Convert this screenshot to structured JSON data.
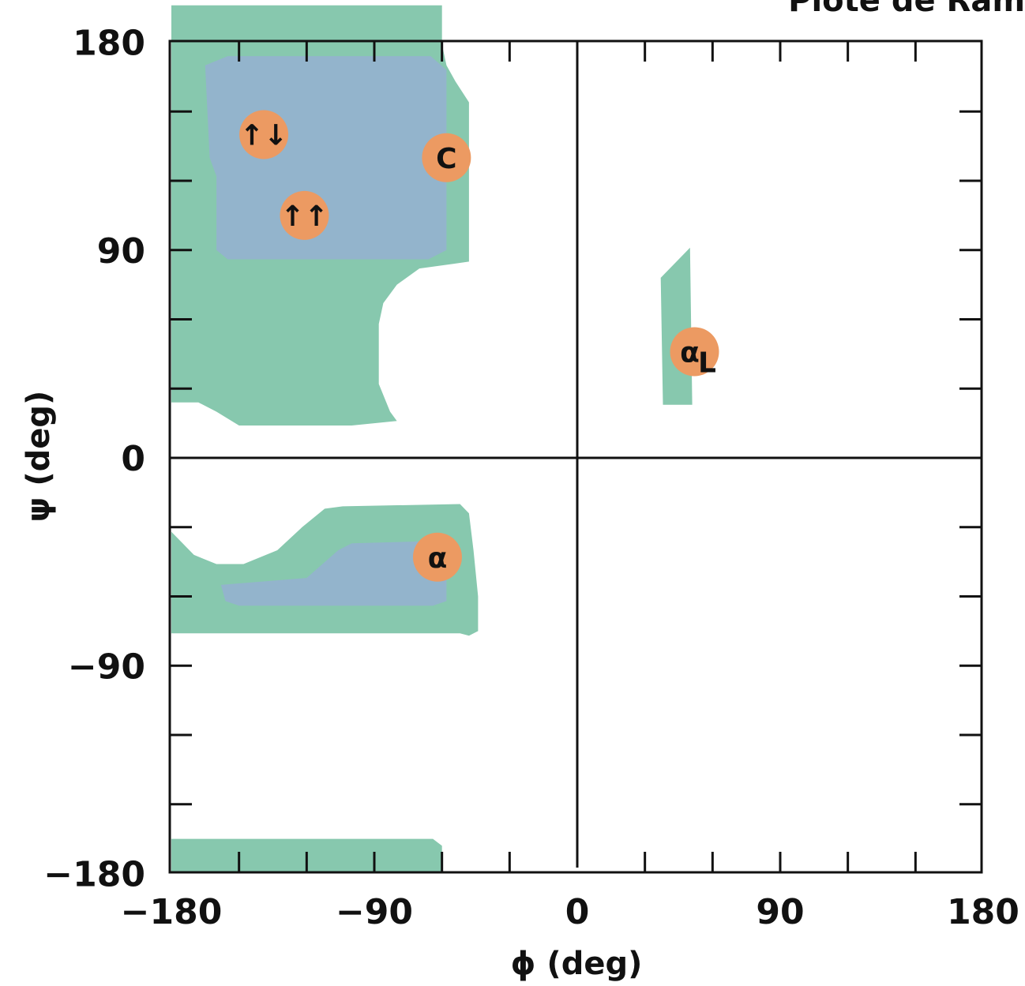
{
  "chart_data": {
    "type": "scatter",
    "title": "Plote de Ram",
    "xlabel": "ϕ (deg)",
    "ylabel": "ψ (deg)",
    "xlim": [
      -180,
      180
    ],
    "ylim": [
      -180,
      180
    ],
    "x_ticks": [
      -180,
      -90,
      0,
      90,
      180
    ],
    "x_tick_labels": [
      "−180",
      "−90",
      "0",
      "90",
      "180"
    ],
    "y_ticks": [
      180,
      90,
      0,
      -90,
      -180
    ],
    "y_tick_labels": [
      "180",
      "90",
      "0",
      "−90",
      "−180"
    ],
    "minor_tick_step": 30,
    "grid": false,
    "colors": {
      "allowed": "#87c8ae",
      "favored": "#93b4cc",
      "marker": "#ec9a62",
      "axis": "#111111"
    },
    "regions": [
      {
        "name": "beta-allowed",
        "level": "allowed",
        "points": [
          [
            -180,
            196
          ],
          [
            -60,
            196
          ],
          [
            -60,
            179
          ],
          [
            -58,
            170
          ],
          [
            -54,
            163
          ],
          [
            -48,
            154
          ],
          [
            -48,
            85
          ],
          [
            -55,
            84
          ],
          [
            -70,
            82
          ],
          [
            -80,
            75
          ],
          [
            -86,
            67
          ],
          [
            -88,
            58
          ],
          [
            -88,
            32
          ],
          [
            -83,
            20
          ],
          [
            -80,
            16
          ],
          [
            -100,
            14
          ],
          [
            -150,
            14
          ],
          [
            -160,
            20
          ],
          [
            -168,
            24
          ],
          [
            -180,
            24
          ]
        ]
      },
      {
        "name": "beta-favored",
        "level": "favored",
        "points": [
          [
            -165,
            170
          ],
          [
            -155,
            174
          ],
          [
            -65,
            174
          ],
          [
            -58,
            168
          ],
          [
            -58,
            90
          ],
          [
            -66,
            86
          ],
          [
            -155,
            86
          ],
          [
            -160,
            90
          ],
          [
            -160,
            122
          ],
          [
            -163,
            130
          ]
        ]
      },
      {
        "name": "alpha-allowed",
        "level": "allowed",
        "points": [
          [
            -180,
            -32
          ],
          [
            -170,
            -42
          ],
          [
            -160,
            -46
          ],
          [
            -148,
            -46
          ],
          [
            -133,
            -40
          ],
          [
            -122,
            -30
          ],
          [
            -112,
            -22
          ],
          [
            -104,
            -21
          ],
          [
            -52,
            -20
          ],
          [
            -48,
            -24
          ],
          [
            -46,
            -40
          ],
          [
            -44,
            -60
          ],
          [
            -44,
            -75
          ],
          [
            -48,
            -77
          ],
          [
            -52,
            -76
          ],
          [
            -180,
            -76
          ]
        ]
      },
      {
        "name": "alpha-favored",
        "level": "favored",
        "points": [
          [
            -158,
            -55
          ],
          [
            -120,
            -52
          ],
          [
            -106,
            -40
          ],
          [
            -100,
            -37
          ],
          [
            -62,
            -36
          ],
          [
            -58,
            -42
          ],
          [
            -58,
            -62
          ],
          [
            -64,
            -64
          ],
          [
            -150,
            -64
          ],
          [
            -156,
            -62
          ]
        ]
      },
      {
        "name": "alpha-L-allowed",
        "level": "allowed",
        "points": [
          [
            37,
            78
          ],
          [
            50,
            91
          ],
          [
            51,
            23
          ],
          [
            38,
            23
          ]
        ]
      },
      {
        "name": "bottom-allowed",
        "level": "allowed",
        "points": [
          [
            -180,
            -180
          ],
          [
            -60,
            -180
          ],
          [
            -60,
            -168
          ],
          [
            -64,
            -165
          ],
          [
            -180,
            -165
          ]
        ]
      }
    ],
    "points": [
      {
        "name": "antiparallel-beta",
        "label": "↑↓",
        "x": -139,
        "y": 140
      },
      {
        "name": "parallel-beta",
        "label": "↑↑",
        "x": -121,
        "y": 105
      },
      {
        "name": "collagen",
        "label": "C",
        "x": -58,
        "y": 130
      },
      {
        "name": "alpha-helix",
        "label": "α",
        "x": -62,
        "y": -43
      },
      {
        "name": "left-handed-helix",
        "label": "α",
        "sub": "L",
        "x": 52,
        "y": 46
      }
    ]
  }
}
